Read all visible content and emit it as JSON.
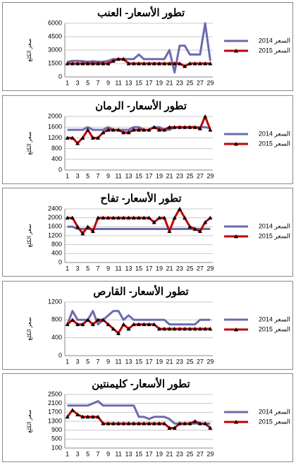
{
  "chart_data": [
    {
      "type": "line",
      "title": "تطور الأسعار- العنب",
      "y_label": "سعر الكلغ",
      "grid": true,
      "categories": [
        1,
        null,
        3,
        null,
        5,
        null,
        7,
        null,
        9,
        null,
        11,
        null,
        13,
        null,
        15,
        null,
        17,
        null,
        19,
        null,
        21,
        null,
        23,
        null,
        25,
        null,
        27,
        null,
        29
      ],
      "ylim": [
        0,
        6000
      ],
      "yticks": [
        0,
        1500,
        3000,
        4500,
        6000
      ],
      "series": [
        {
          "name": "السعر 2014",
          "color": "#6b6bb0",
          "values": [
            1700,
            1800,
            1800,
            1750,
            1700,
            1750,
            1700,
            1700,
            1800,
            2000,
            2000,
            2000,
            2000,
            2000,
            2500,
            2000,
            2000,
            2000,
            2000,
            2000,
            3000,
            500,
            3500,
            3500,
            2500,
            2500,
            2500,
            6000,
            1800
          ]
        },
        {
          "name": "السعر 2015",
          "color": "#c00000",
          "marker": "triangle",
          "values": [
            1500,
            1500,
            1500,
            1500,
            1500,
            1500,
            1500,
            1500,
            1500,
            1800,
            2000,
            2000,
            1500,
            1500,
            1500,
            1500,
            1500,
            1500,
            1500,
            1500,
            1500,
            1500,
            1500,
            1200,
            1500,
            1500,
            1500,
            1500,
            1500
          ]
        }
      ]
    },
    {
      "type": "line",
      "title": "تطور الأسعار- الرمان",
      "y_label": "سعر الكلغ",
      "grid": true,
      "categories": [
        1,
        null,
        3,
        null,
        5,
        null,
        7,
        null,
        9,
        null,
        11,
        null,
        13,
        null,
        15,
        null,
        17,
        null,
        19,
        null,
        21,
        null,
        23,
        null,
        25,
        null,
        27,
        null,
        29
      ],
      "ylim": [
        0,
        2000
      ],
      "yticks": [
        0,
        400,
        800,
        1200,
        1600,
        2000
      ],
      "series": [
        {
          "name": "السعر 2014",
          "color": "#6b6bb0",
          "values": [
            1500,
            1500,
            1500,
            1500,
            1600,
            1500,
            1500,
            1500,
            1600,
            1500,
            1500,
            1500,
            1500,
            1600,
            1600,
            1500,
            1500,
            1600,
            1600,
            1500,
            1500,
            1600,
            1600,
            1600,
            1600,
            1600,
            1600,
            1600,
            1550
          ]
        },
        {
          "name": "السعر 2015",
          "color": "#c00000",
          "marker": "triangle",
          "values": [
            1200,
            1200,
            1000,
            1200,
            1500,
            1200,
            1200,
            1400,
            1500,
            1500,
            1500,
            1400,
            1400,
            1500,
            1500,
            1500,
            1500,
            1600,
            1500,
            1500,
            1600,
            1600,
            1600,
            1600,
            1600,
            1600,
            1550,
            2000,
            1500
          ]
        }
      ]
    },
    {
      "type": "line",
      "title": "تطور الأسعار- تفاح",
      "y_label": "سعر الكلغ",
      "grid": true,
      "categories": [
        1,
        null,
        3,
        null,
        5,
        null,
        7,
        null,
        9,
        null,
        11,
        null,
        13,
        null,
        15,
        null,
        17,
        null,
        19,
        null,
        21,
        null,
        23,
        null,
        25,
        null,
        27,
        null,
        29
      ],
      "ylim": [
        0,
        2400
      ],
      "yticks": [
        0,
        400,
        800,
        1200,
        1600,
        2000,
        2400
      ],
      "series": [
        {
          "name": "السعر 2014",
          "color": "#6b6bb0",
          "values": [
            1600,
            1600,
            1500,
            1500,
            1500,
            1500,
            1500,
            1500,
            1500,
            1500,
            1500,
            1500,
            1500,
            1500,
            1500,
            1500,
            1500,
            1500,
            1500,
            1500,
            1500,
            1500,
            1500,
            1500,
            1500,
            1500,
            1500,
            1500,
            1500
          ]
        },
        {
          "name": "السعر 2015",
          "color": "#c00000",
          "marker": "triangle",
          "values": [
            2000,
            2000,
            1600,
            1300,
            1600,
            1400,
            2000,
            2000,
            2000,
            2000,
            2000,
            2000,
            2000,
            2000,
            2000,
            2000,
            2000,
            1800,
            2000,
            2000,
            1400,
            2000,
            2400,
            2000,
            1600,
            1500,
            1400,
            1800,
            2000
          ]
        }
      ]
    },
    {
      "type": "line",
      "title": "تطور الأسعار- القارص",
      "y_label": "سعر الكلغ",
      "grid": true,
      "categories": [
        1,
        null,
        3,
        null,
        5,
        null,
        7,
        null,
        9,
        null,
        11,
        null,
        13,
        null,
        15,
        null,
        17,
        null,
        19,
        null,
        21,
        null,
        23,
        null,
        25,
        null,
        27,
        null,
        29
      ],
      "ylim": [
        0,
        1200
      ],
      "yticks": [
        0,
        400,
        800,
        1200
      ],
      "series": [
        {
          "name": "السعر 2014",
          "color": "#6b6bb0",
          "values": [
            700,
            1000,
            800,
            800,
            800,
            1000,
            700,
            800,
            900,
            1000,
            1000,
            800,
            900,
            800,
            800,
            800,
            800,
            800,
            800,
            800,
            700,
            700,
            700,
            700,
            700,
            700,
            800,
            800,
            800
          ]
        },
        {
          "name": "السعر 2015",
          "color": "#c00000",
          "marker": "triangle",
          "values": [
            700,
            800,
            700,
            700,
            800,
            700,
            800,
            800,
            700,
            600,
            500,
            700,
            600,
            700,
            700,
            700,
            700,
            700,
            600,
            600,
            600,
            600,
            600,
            600,
            600,
            600,
            600,
            600,
            600
          ]
        }
      ]
    },
    {
      "type": "line",
      "title": "تطور الأسعار- كليمنتين",
      "y_label": "سعر الكلغ",
      "grid": true,
      "categories": [
        1,
        null,
        3,
        null,
        5,
        null,
        7,
        null,
        9,
        null,
        11,
        null,
        13,
        null,
        15,
        null,
        17,
        null,
        19,
        null,
        21,
        null,
        23,
        null,
        25,
        null,
        27,
        null,
        29
      ],
      "ylim": [
        100,
        2500
      ],
      "yticks": [
        100,
        500,
        900,
        1300,
        1700,
        2100,
        2500
      ],
      "series": [
        {
          "name": "السعر 2014",
          "color": "#6b6bb0",
          "values": [
            2000,
            2000,
            2000,
            2000,
            2000,
            2100,
            2200,
            2000,
            2000,
            2000,
            2000,
            2000,
            2000,
            2000,
            1500,
            1500,
            1400,
            1500,
            1500,
            1500,
            1400,
            1200,
            1200,
            1200,
            1200,
            1200,
            1200,
            1200,
            1200
          ]
        },
        {
          "name": "السعر 2015",
          "color": "#c00000",
          "marker": "triangle",
          "values": [
            1500,
            1800,
            1600,
            1500,
            1500,
            1500,
            1500,
            1200,
            1200,
            1200,
            1200,
            1200,
            1200,
            1200,
            1200,
            1200,
            1200,
            1200,
            1200,
            1200,
            1000,
            1000,
            1200,
            1200,
            1200,
            1300,
            1200,
            1200,
            1000
          ]
        }
      ]
    }
  ]
}
